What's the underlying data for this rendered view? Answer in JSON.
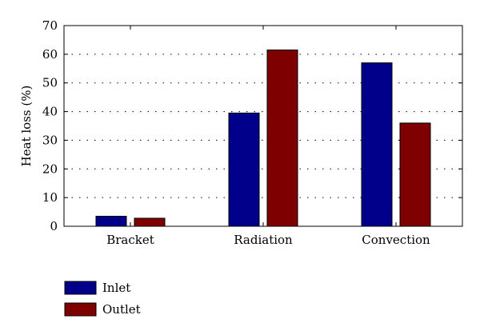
{
  "chart_data": {
    "type": "bar",
    "title": "",
    "xlabel": "",
    "ylabel": "Heat loss (%)",
    "categories": [
      "Bracket",
      "Radiation",
      "Convection"
    ],
    "series": [
      {
        "name": "Inlet",
        "color": "#00008B",
        "values": [
          3.5,
          39.5,
          57.0
        ]
      },
      {
        "name": "Outlet",
        "color": "#7F0000",
        "values": [
          2.8,
          61.5,
          36.0
        ]
      }
    ],
    "ylim": [
      0,
      70
    ],
    "yticks": [
      0,
      10,
      20,
      30,
      40,
      50,
      60,
      70
    ],
    "grid": "dotted horizontal",
    "legend_position": "bottom-left"
  }
}
